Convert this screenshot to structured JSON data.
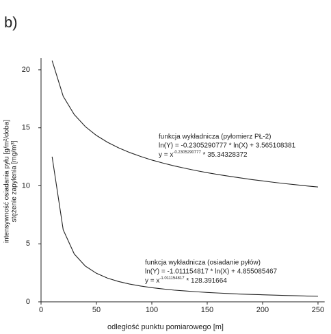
{
  "panel_label": "b)",
  "chart_data": {
    "type": "line",
    "x_label": "odległość  punktu pomiarowego [m]",
    "y_label": [
      "intensywność  osiadania pyłu [g/m²/doba]",
      "stężenie zapylenia [mg/m³]"
    ],
    "x": [
      10,
      20,
      30,
      40,
      50,
      60,
      70,
      80,
      90,
      100,
      110,
      120,
      130,
      140,
      150,
      160,
      170,
      180,
      190,
      200,
      210,
      220,
      230,
      240,
      250
    ],
    "series": [
      {
        "color": "#222222",
        "values": [
          20.79,
          17.72,
          16.14,
          15.1,
          14.34,
          13.75,
          13.27,
          12.87,
          12.53,
          12.22,
          11.96,
          11.72,
          11.51,
          11.31,
          11.13,
          10.97,
          10.82,
          10.68,
          10.54,
          10.42,
          10.3,
          10.19,
          10.09,
          9.99,
          9.9
        ]
      },
      {
        "color": "#222222",
        "values": [
          12.51,
          6.21,
          4.12,
          3.08,
          2.46,
          2.04,
          1.75,
          1.53,
          1.36,
          1.22,
          1.11,
          1.01,
          0.94,
          0.87,
          0.81,
          0.76,
          0.71,
          0.67,
          0.64,
          0.61,
          0.58,
          0.55,
          0.53,
          0.5,
          0.48
        ]
      }
    ],
    "annotations": [
      {
        "title": "funkcja wykładnicza (pyłomierz PŁ-2)",
        "line1": "ln(Y) = -0.2305290777 * ln(X) + 3.565108381",
        "line2_base": "y = x",
        "line2_sup": "-0.2305290777",
        "line2_rest": " * 35.34328372"
      },
      {
        "title": "funkcja wykładnicza (osiadanie pyłów)",
        "line1": "ln(Y) = -1.011154817 * ln(X) + 4.855085467",
        "line2_base": "y = x",
        "line2_sup": "-1.011154817",
        "line2_rest": " * 128.391664"
      }
    ],
    "xlim": [
      0,
      256
    ],
    "ylim": [
      0,
      21
    ],
    "xticks": [
      0,
      50,
      100,
      150,
      200,
      250
    ],
    "yticks": [
      0,
      5,
      10,
      15,
      20
    ]
  }
}
